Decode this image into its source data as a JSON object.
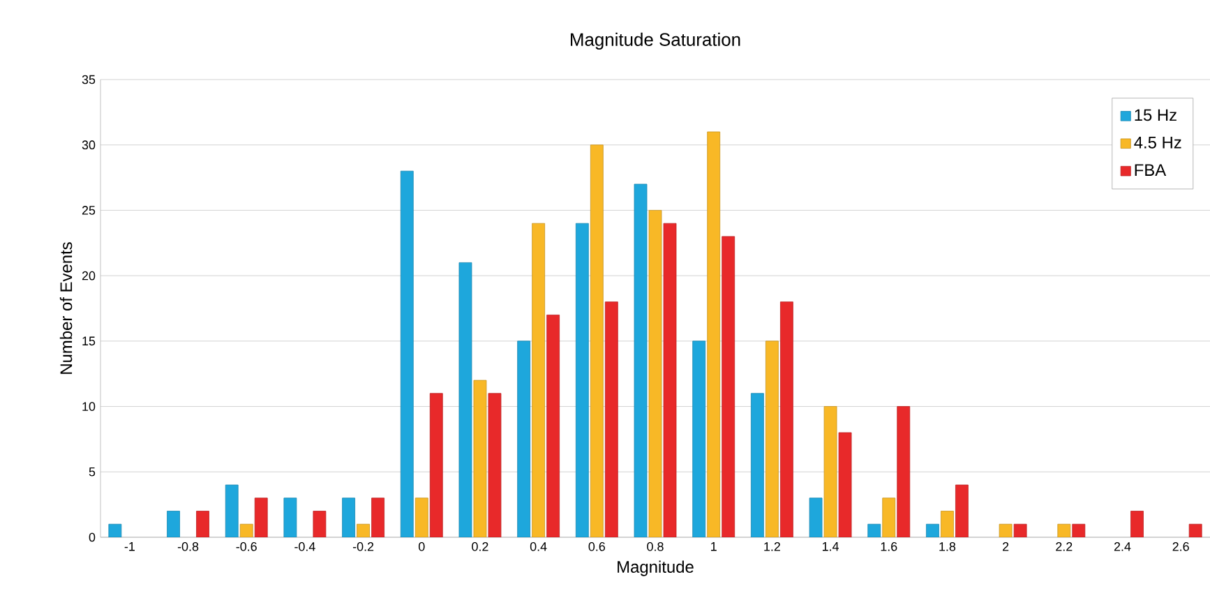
{
  "chart_data": {
    "type": "bar",
    "title": "Magnitude Saturation",
    "xlabel": "Magnitude",
    "ylabel": "Number of Events",
    "categories": [
      "-1",
      "-0.8",
      "-0.6",
      "-0.4",
      "-0.2",
      "0",
      "0.2",
      "0.4",
      "0.6",
      "0.8",
      "1",
      "1.2",
      "1.4",
      "1.6",
      "1.8",
      "2",
      "2.2",
      "2.4",
      "2.6"
    ],
    "series": [
      {
        "name": "15 Hz",
        "color": "#1ea7dc",
        "values": [
          1,
          2,
          4,
          3,
          3,
          28,
          21,
          15,
          24,
          27,
          15,
          11,
          3,
          1,
          1,
          null,
          null,
          null,
          null
        ]
      },
      {
        "name": "4.5 Hz",
        "color": "#f8b826",
        "values": [
          null,
          null,
          1,
          null,
          1,
          3,
          12,
          24,
          30,
          25,
          31,
          15,
          10,
          3,
          2,
          1,
          1,
          null,
          null
        ]
      },
      {
        "name": "FBA",
        "color": "#e8292a",
        "values": [
          null,
          2,
          3,
          2,
          3,
          11,
          11,
          17,
          18,
          24,
          23,
          18,
          8,
          10,
          4,
          1,
          1,
          2,
          1
        ]
      }
    ],
    "ylim": [
      0,
      35
    ],
    "yticks": [
      0,
      5,
      10,
      15,
      20,
      25,
      30,
      35
    ],
    "grid": "y",
    "legend": "top right"
  }
}
